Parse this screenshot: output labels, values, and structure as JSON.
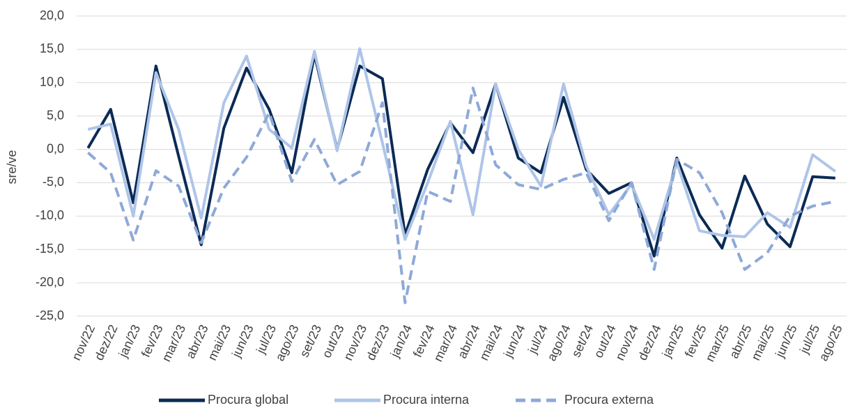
{
  "chart_data": {
    "type": "line",
    "y_label": "sre/ve",
    "categories": [
      "nov/22",
      "dez/22",
      "jan/23",
      "fev/23",
      "mar/23",
      "abr/23",
      "mai/23",
      "jun/23",
      "jul/23",
      "ago/23",
      "set/23",
      "out/23",
      "nov/23",
      "dez/23",
      "jan/24",
      "fev/24",
      "mar/24",
      "abr/24",
      "mai/24",
      "jun/24",
      "jul/24",
      "ago/24",
      "set/24",
      "out/24",
      "nov/24",
      "dez/24",
      "jan/25",
      "fev/25",
      "mar/25",
      "abr/25",
      "mai/25",
      "jun/25",
      "jul/25",
      "ago/25"
    ],
    "series": [
      {
        "name": "Procura global",
        "color": "#0b2a55",
        "dash": false,
        "values": [
          0.2,
          6.0,
          -8.0,
          12.5,
          -1.0,
          -14.3,
          3.2,
          12.2,
          6.0,
          -3.5,
          14.2,
          0.0,
          12.5,
          10.6,
          -12.8,
          -3.0,
          4.0,
          -0.5,
          9.8,
          -1.3,
          -3.5,
          7.8,
          -3.0,
          -6.6,
          -5.0,
          -16.0,
          -1.3,
          -9.8,
          -14.8,
          -4.0,
          -11.2,
          -14.6,
          -4.1,
          -4.3
        ]
      },
      {
        "name": "Procura interna",
        "color": "#aec5e8",
        "dash": false,
        "values": [
          3.0,
          3.8,
          -10.0,
          11.5,
          3.0,
          -10.3,
          7.0,
          14.0,
          3.0,
          0.2,
          14.7,
          -0.2,
          15.1,
          1.0,
          -13.5,
          -5.0,
          4.2,
          -9.8,
          9.8,
          0.0,
          -5.5,
          9.8,
          -2.5,
          -9.8,
          -5.2,
          -13.5,
          -2.0,
          -12.2,
          -12.9,
          -13.1,
          -9.5,
          -11.7,
          -0.8,
          -3.3
        ]
      },
      {
        "name": "Procura externa",
        "color": "#8ea9d8",
        "dash": true,
        "values": [
          -0.5,
          -3.5,
          -13.6,
          -3.2,
          -5.5,
          -14.0,
          -5.8,
          -1.2,
          5.5,
          -4.8,
          1.5,
          -5.3,
          -3.3,
          7.0,
          -23.0,
          -6.3,
          -7.8,
          9.2,
          -2.3,
          -5.3,
          -6.0,
          -4.5,
          -3.5,
          -10.7,
          -5.0,
          -18.0,
          -1.5,
          -3.5,
          -9.5,
          -18.0,
          -15.5,
          -10.0,
          -8.5,
          -7.8
        ]
      }
    ],
    "ylim": [
      -25,
      20
    ],
    "yticks": [
      {
        "value": -25,
        "label": "-25,0"
      },
      {
        "value": -20,
        "label": "-20,0"
      },
      {
        "value": -15,
        "label": "-15,0"
      },
      {
        "value": -10,
        "label": "-10,0"
      },
      {
        "value": -5,
        "label": "-5,0"
      },
      {
        "value": 0,
        "label": "0,0"
      },
      {
        "value": 5,
        "label": "5,0"
      },
      {
        "value": 10,
        "label": "10,0"
      },
      {
        "value": 15,
        "label": "15,0"
      },
      {
        "value": 20,
        "label": "20,0"
      }
    ],
    "grid": true
  }
}
